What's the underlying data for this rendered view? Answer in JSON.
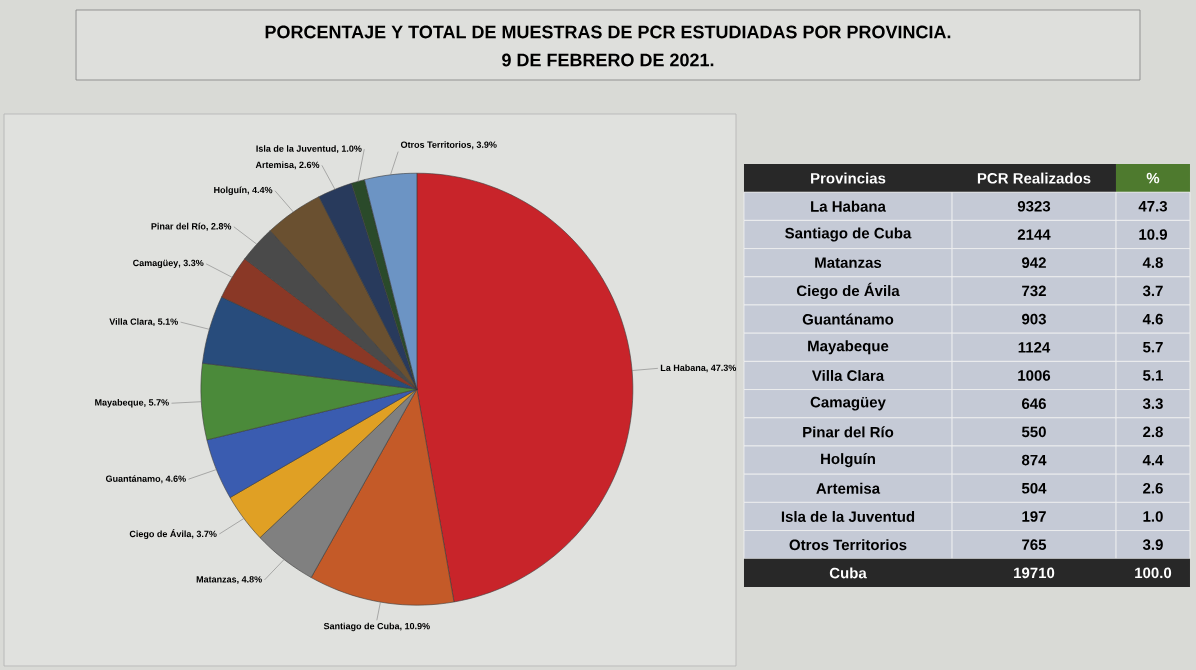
{
  "chart_data": {
    "type": "pie",
    "title": "PORCENTAJE Y TOTAL DE MUESTRAS DE PCR ESTUDIADAS POR PROVINCIA.",
    "subtitle": "9 DE FEBRERO DE 2021.",
    "categories": [
      "La Habana",
      "Santiago de Cuba",
      "Matanzas",
      "Ciego de Ávila",
      "Guantánamo",
      "Mayabeque",
      "Villa Clara",
      "Camagüey",
      "Pinar del Río",
      "Holguín",
      "Artemisa",
      "Isla de la Juventud",
      "Otros Territorios"
    ],
    "values": [
      47.3,
      10.9,
      4.8,
      3.7,
      4.6,
      5.7,
      5.1,
      3.3,
      2.8,
      4.4,
      2.6,
      1.0,
      3.9
    ],
    "value_labels": [
      ", 47.3%",
      ", 10.9%",
      ", 4.8%",
      ", 3.7%",
      ", 4.6%",
      ", 5.7%",
      ", 5.1%",
      ", 3.3%",
      ", 2.8%",
      ", 4.4%",
      ", 2.6%",
      ", 1.0%",
      ", 3.9%"
    ],
    "colors": [
      "#c8242a",
      "#c45a28",
      "#808080",
      "#e0a024",
      "#3a5cb0",
      "#4b8a3a",
      "#284c7c",
      "#8a3826",
      "#4a4a4a",
      "#6a5030",
      "#283a5c",
      "#2a4a2a",
      "#6c94c4"
    ],
    "annotations": [
      "Provincias",
      "PCR Realizados",
      "%",
      "La Habana",
      "9323",
      "47.3",
      "Santiago de Cuba",
      "2144",
      "10.9",
      "Matanzas",
      "942",
      "4.8",
      "Ciego de Ávila",
      "732",
      "3.7",
      "Guantánamo",
      "903",
      "4.6",
      "Mayabeque",
      "1124",
      "5.7",
      "Villa Clara",
      "1006",
      "5.1",
      "Camagüey",
      "646",
      "3.3",
      "Pinar del Río",
      "550",
      "2.8",
      "Holguín",
      "874",
      "4.4",
      "Artemisa",
      "504",
      "2.6",
      "Isla de la Juventud",
      "197",
      "1.0",
      "Otros Territorios",
      "765",
      "3.9",
      "Cuba",
      "19710",
      "100.0"
    ]
  }
}
